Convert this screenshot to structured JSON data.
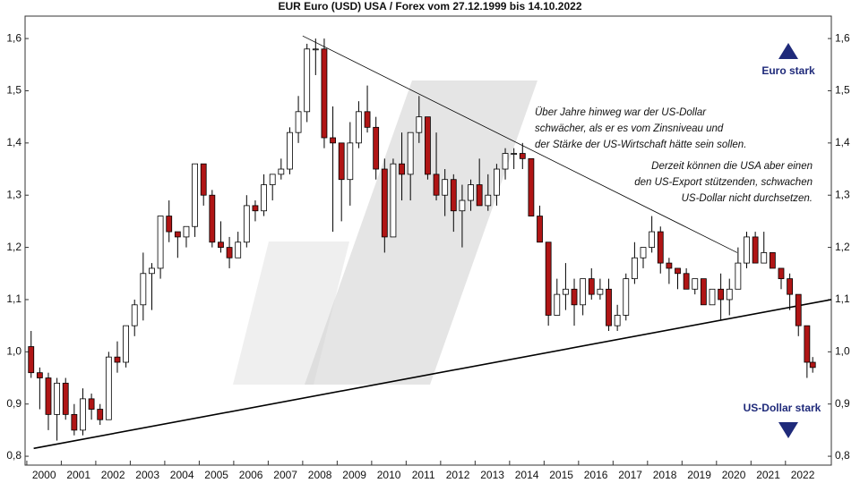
{
  "chart_data": {
    "type": "candlestick",
    "title": "EUR Euro (USD) USA / Forex vom 27.12.1999 bis 14.10.2022",
    "x": [
      2000.125,
      2000.375,
      2000.625,
      2000.875,
      2001.125,
      2001.375,
      2001.625,
      2001.875,
      2002.125,
      2002.375,
      2002.625,
      2002.875,
      2003.125,
      2003.375,
      2003.625,
      2003.875,
      2004.125,
      2004.375,
      2004.625,
      2004.875,
      2005.125,
      2005.375,
      2005.625,
      2005.875,
      2006.125,
      2006.375,
      2006.625,
      2006.875,
      2007.125,
      2007.375,
      2007.625,
      2007.875,
      2008.125,
      2008.375,
      2008.625,
      2008.875,
      2009.125,
      2009.375,
      2009.625,
      2009.875,
      2010.125,
      2010.375,
      2010.625,
      2010.875,
      2011.125,
      2011.375,
      2011.625,
      2011.875,
      2012.125,
      2012.375,
      2012.625,
      2012.875,
      2013.125,
      2013.375,
      2013.625,
      2013.875,
      2014.125,
      2014.375,
      2014.625,
      2014.875,
      2015.125,
      2015.375,
      2015.625,
      2015.875,
      2016.125,
      2016.375,
      2016.625,
      2016.875,
      2017.125,
      2017.375,
      2017.625,
      2017.875,
      2018.125,
      2018.375,
      2018.625,
      2018.875,
      2019.125,
      2019.375,
      2019.625,
      2019.875,
      2020.125,
      2020.375,
      2020.625,
      2020.875,
      2021.125,
      2021.375,
      2021.625,
      2021.875,
      2022.125,
      2022.375,
      2022.625,
      2022.79
    ],
    "open": [
      1.01,
      0.96,
      0.95,
      0.88,
      0.94,
      0.88,
      0.85,
      0.91,
      0.89,
      0.87,
      0.99,
      0.98,
      1.05,
      1.09,
      1.15,
      1.16,
      1.26,
      1.23,
      1.22,
      1.24,
      1.36,
      1.3,
      1.21,
      1.2,
      1.18,
      1.21,
      1.28,
      1.27,
      1.32,
      1.34,
      1.35,
      1.42,
      1.46,
      1.58,
      1.58,
      1.41,
      1.4,
      1.33,
      1.4,
      1.46,
      1.43,
      1.35,
      1.22,
      1.36,
      1.34,
      1.42,
      1.45,
      1.34,
      1.3,
      1.33,
      1.27,
      1.29,
      1.32,
      1.28,
      1.3,
      1.35,
      1.38,
      1.38,
      1.37,
      1.26,
      1.21,
      1.07,
      1.11,
      1.12,
      1.09,
      1.14,
      1.11,
      1.12,
      1.05,
      1.07,
      1.14,
      1.18,
      1.2,
      1.23,
      1.17,
      1.16,
      1.15,
      1.12,
      1.14,
      1.09,
      1.12,
      1.1,
      1.12,
      1.17,
      1.22,
      1.17,
      1.19,
      1.16,
      1.14,
      1.11,
      1.05,
      0.98
    ],
    "high": [
      1.04,
      0.97,
      0.96,
      0.95,
      0.95,
      0.9,
      0.93,
      0.92,
      0.9,
      1.0,
      1.02,
      1.05,
      1.1,
      1.19,
      1.17,
      1.26,
      1.29,
      1.23,
      1.24,
      1.36,
      1.36,
      1.31,
      1.25,
      1.22,
      1.23,
      1.3,
      1.29,
      1.34,
      1.34,
      1.37,
      1.43,
      1.49,
      1.59,
      1.6,
      1.6,
      1.47,
      1.4,
      1.44,
      1.48,
      1.51,
      1.45,
      1.37,
      1.37,
      1.42,
      1.42,
      1.49,
      1.45,
      1.42,
      1.35,
      1.34,
      1.32,
      1.33,
      1.37,
      1.34,
      1.36,
      1.39,
      1.39,
      1.4,
      1.37,
      1.28,
      1.21,
      1.14,
      1.17,
      1.14,
      1.14,
      1.16,
      1.14,
      1.14,
      1.09,
      1.15,
      1.21,
      1.2,
      1.26,
      1.24,
      1.18,
      1.16,
      1.16,
      1.14,
      1.14,
      1.12,
      1.15,
      1.14,
      1.2,
      1.23,
      1.23,
      1.23,
      1.19,
      1.16,
      1.15,
      1.11,
      1.05,
      0.99
    ],
    "low": [
      0.95,
      0.89,
      0.85,
      0.83,
      0.87,
      0.84,
      0.84,
      0.87,
      0.86,
      0.87,
      0.96,
      0.97,
      1.03,
      1.06,
      1.08,
      1.14,
      1.21,
      1.18,
      1.2,
      1.22,
      1.28,
      1.2,
      1.19,
      1.16,
      1.18,
      1.2,
      1.25,
      1.26,
      1.29,
      1.33,
      1.34,
      1.4,
      1.44,
      1.53,
      1.39,
      1.23,
      1.25,
      1.28,
      1.39,
      1.42,
      1.33,
      1.19,
      1.22,
      1.29,
      1.29,
      1.4,
      1.33,
      1.29,
      1.26,
      1.23,
      1.2,
      1.27,
      1.28,
      1.27,
      1.28,
      1.33,
      1.35,
      1.35,
      1.26,
      1.21,
      1.05,
      1.07,
      1.08,
      1.05,
      1.07,
      1.1,
      1.1,
      1.04,
      1.04,
      1.06,
      1.13,
      1.16,
      1.19,
      1.15,
      1.13,
      1.12,
      1.12,
      1.11,
      1.09,
      1.09,
      1.06,
      1.07,
      1.12,
      1.16,
      1.17,
      1.17,
      1.16,
      1.12,
      1.08,
      1.03,
      0.95,
      0.96
    ],
    "close": [
      0.96,
      0.95,
      0.88,
      0.94,
      0.88,
      0.85,
      0.91,
      0.89,
      0.87,
      0.99,
      0.98,
      1.05,
      1.09,
      1.15,
      1.16,
      1.26,
      1.23,
      1.22,
      1.24,
      1.36,
      1.3,
      1.21,
      1.2,
      1.18,
      1.21,
      1.28,
      1.27,
      1.32,
      1.34,
      1.35,
      1.42,
      1.46,
      1.58,
      1.58,
      1.41,
      1.4,
      1.33,
      1.4,
      1.46,
      1.43,
      1.35,
      1.22,
      1.36,
      1.34,
      1.42,
      1.45,
      1.34,
      1.3,
      1.33,
      1.27,
      1.29,
      1.32,
      1.28,
      1.3,
      1.35,
      1.38,
      1.38,
      1.37,
      1.26,
      1.21,
      1.07,
      1.11,
      1.12,
      1.09,
      1.14,
      1.11,
      1.12,
      1.05,
      1.07,
      1.14,
      1.18,
      1.2,
      1.23,
      1.17,
      1.16,
      1.15,
      1.12,
      1.14,
      1.09,
      1.12,
      1.1,
      1.12,
      1.17,
      1.22,
      1.17,
      1.19,
      1.16,
      1.14,
      1.11,
      1.05,
      0.98,
      0.97
    ],
    "up_color": "#ffffff",
    "down_color": "#b01515",
    "xlim": [
      1999.95,
      2023.33
    ],
    "xticks": [
      2000,
      2001,
      2002,
      2003,
      2004,
      2005,
      2006,
      2007,
      2008,
      2009,
      2010,
      2011,
      2012,
      2013,
      2014,
      2015,
      2016,
      2017,
      2018,
      2019,
      2020,
      2021,
      2022
    ],
    "ylim": [
      0.783,
      1.643
    ],
    "yticks": [
      {
        "value": 0.8,
        "label": "0,8"
      },
      {
        "value": 0.9,
        "label": "0,9"
      },
      {
        "value": 1.0,
        "label": "1,0"
      },
      {
        "value": 1.1,
        "label": "1,1"
      },
      {
        "value": 1.2,
        "label": "1,2"
      },
      {
        "value": 1.3,
        "label": "1,3"
      },
      {
        "value": 1.4,
        "label": "1,4"
      },
      {
        "value": 1.5,
        "label": "1,5"
      },
      {
        "value": 1.6,
        "label": "1,6"
      }
    ],
    "trendlines": [
      {
        "x": [
          2008.0,
          2020.6
        ],
        "y": [
          1.605,
          1.19
        ]
      },
      {
        "x": [
          2000.2,
          2023.33
        ],
        "y": [
          0.815,
          1.1
        ]
      }
    ],
    "annotations": {
      "note1": [
        "Über Jahre hinweg war der US-Dollar",
        "schwächer, als er es vom Zinsniveau und",
        "der Stärke der US-Wirtschaft hätte sein sollen."
      ],
      "note2": [
        "Derzeit können die USA aber einen",
        "den US-Export stützenden, schwachen",
        "US-Dollar nicht durchsetzen."
      ],
      "top": "Euro stark",
      "bottom": "US-Dollar stark"
    }
  }
}
